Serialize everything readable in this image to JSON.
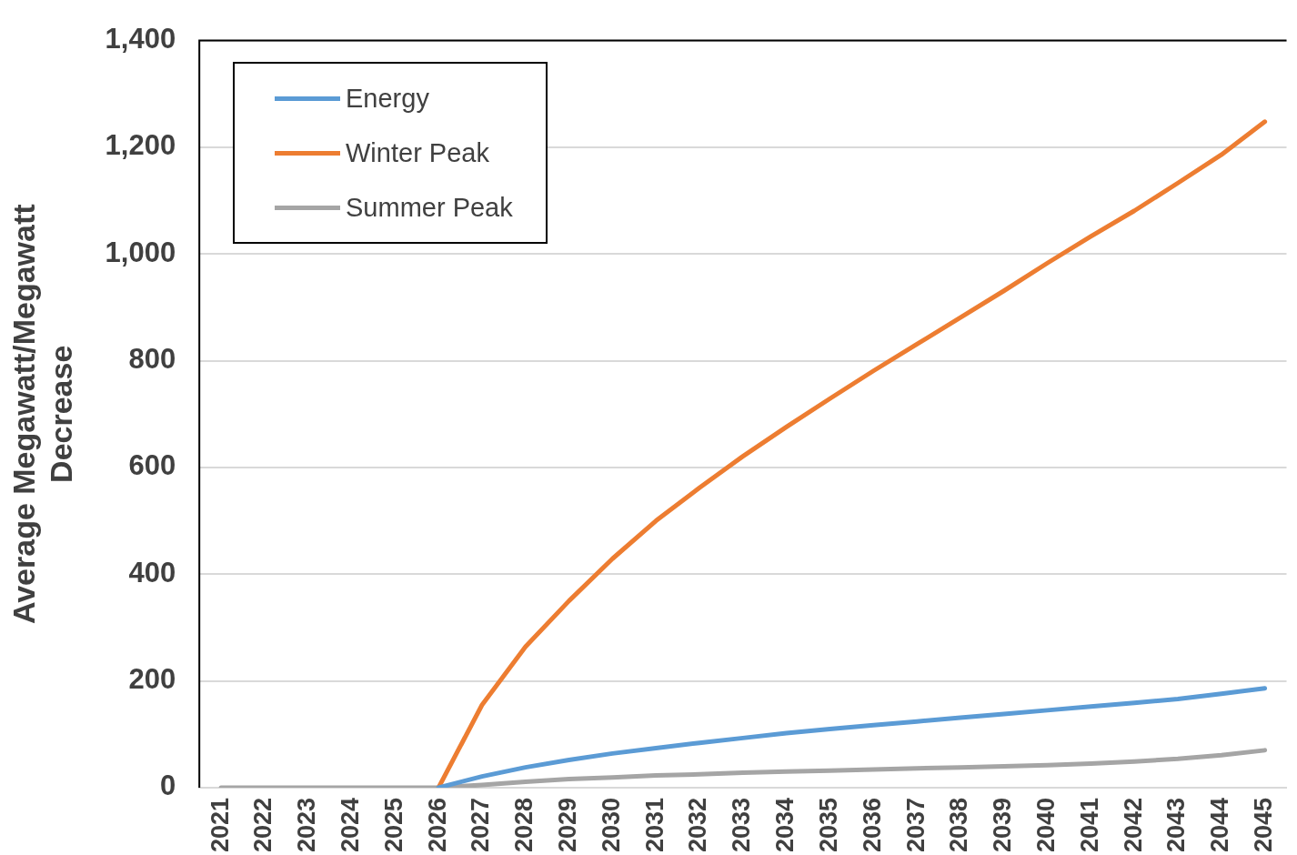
{
  "chart_data": {
    "type": "line",
    "ylabel": "Average Megawatt/Megawatt Decrease",
    "categories": [
      "2021",
      "2022",
      "2023",
      "2024",
      "2025",
      "2026",
      "2027",
      "2028",
      "2029",
      "2030",
      "2031",
      "2032",
      "2033",
      "2034",
      "2035",
      "2036",
      "2037",
      "2038",
      "2039",
      "2040",
      "2041",
      "2042",
      "2043",
      "2044",
      "2045"
    ],
    "series": [
      {
        "name": "Energy",
        "color": "#5b9bd5",
        "values": [
          null,
          null,
          null,
          null,
          null,
          0,
          21,
          38,
          52,
          64,
          74,
          84,
          93,
          102,
          110,
          117,
          124,
          131,
          138,
          145,
          152,
          159,
          166,
          176,
          186
        ]
      },
      {
        "name": "Winter Peak",
        "color": "#ed7d31",
        "values": [
          null,
          null,
          null,
          null,
          null,
          0,
          155,
          264,
          350,
          429,
          500,
          562,
          621,
          676,
          729,
          781,
          831,
          881,
          931,
          983,
          1033,
          1081,
          1133,
          1186,
          1248
        ]
      },
      {
        "name": "Summer Peak",
        "color": "#a5a5a5",
        "values": [
          0,
          0,
          0,
          0,
          0,
          0,
          5,
          11,
          16,
          19,
          23,
          25,
          28,
          30,
          32,
          34,
          36,
          38,
          40,
          42,
          45,
          49,
          54,
          61,
          70
        ]
      }
    ],
    "ylim": [
      0,
      1400
    ],
    "yticks": [
      0,
      200,
      400,
      600,
      800,
      {
        "value": 1000,
        "label": "1,000"
      },
      {
        "value": 1200,
        "label": "1,200"
      },
      {
        "value": 1400,
        "label": "1,400"
      }
    ],
    "grid": "y",
    "legend": "top left",
    "marker": "none",
    "line_style": "solid"
  }
}
